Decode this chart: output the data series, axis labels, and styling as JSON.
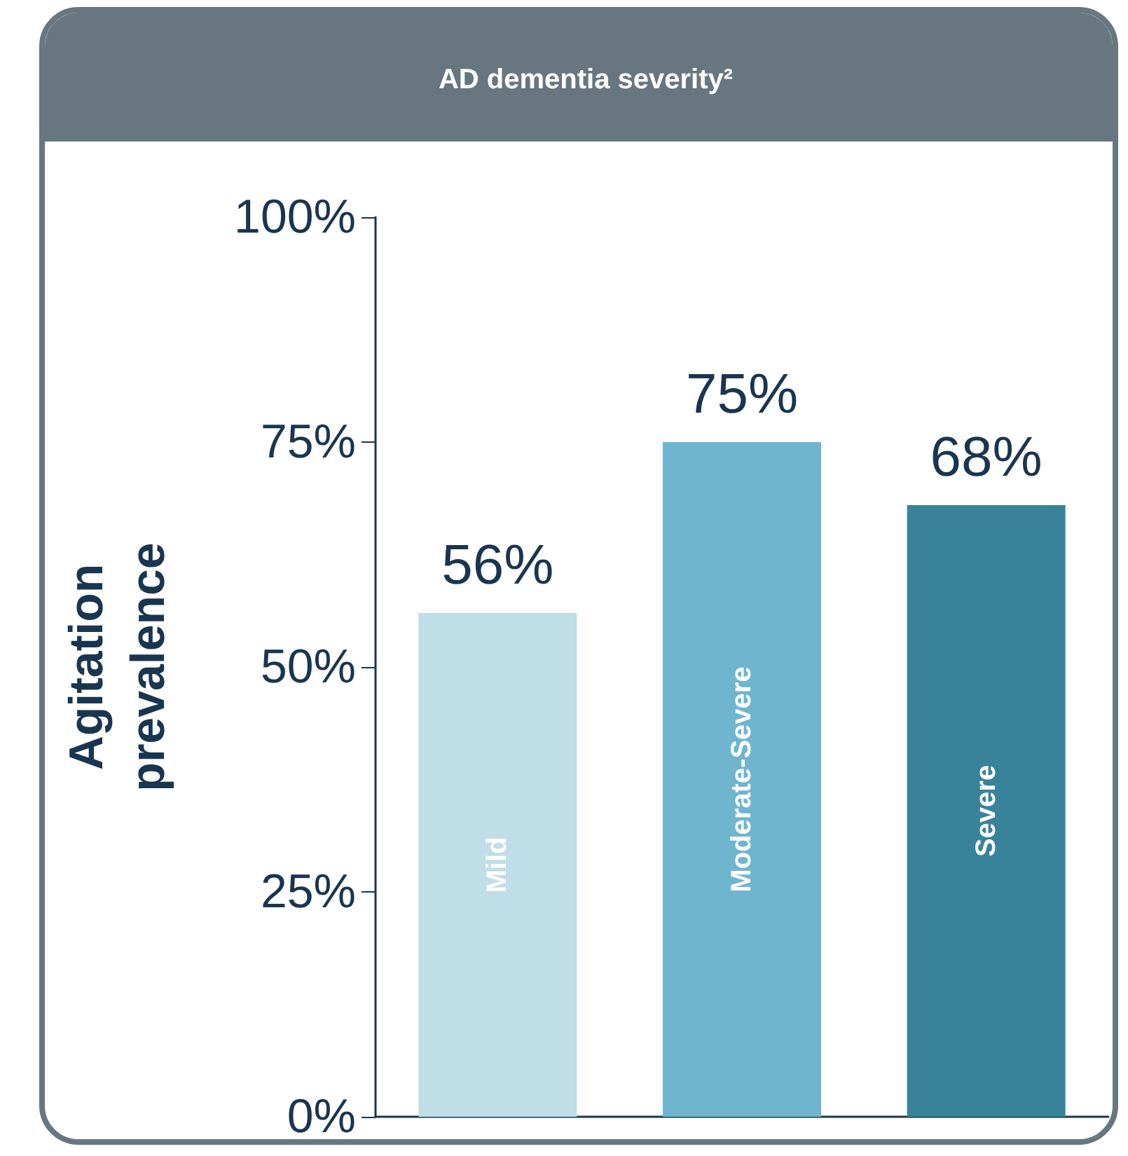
{
  "chart_data": {
    "type": "bar",
    "title": "AD dementia severity²",
    "ylabel": "Agitation prevalence",
    "categories": [
      "Mild",
      "Moderate-Severe",
      "Severe"
    ],
    "values": [
      56,
      75,
      68
    ],
    "colors": [
      "#bfdee7",
      "#6fb5cf",
      "#38839a"
    ],
    "value_labels": [
      "56%",
      "75%",
      "68%"
    ],
    "ylim": [
      0,
      100
    ],
    "yticks": [
      {
        "value": 0,
        "label": "0%"
      },
      {
        "value": 25,
        "label": "25%"
      },
      {
        "value": 50,
        "label": "50%"
      },
      {
        "value": 75,
        "label": "75%"
      },
      {
        "value": 100,
        "label": "100%"
      }
    ],
    "grid": false
  }
}
